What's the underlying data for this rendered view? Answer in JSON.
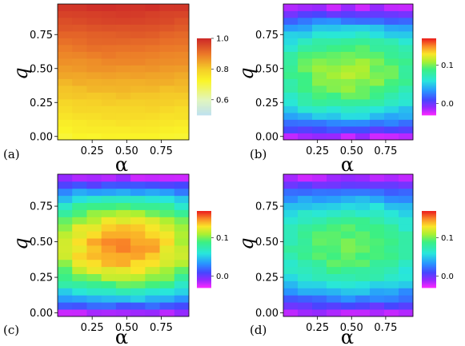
{
  "chart_data": [
    {
      "type": "heatmap",
      "panel_label": "(a)",
      "xlabel": "α",
      "ylabel": "q",
      "x_ticks": [
        "0.25",
        "0.50",
        "0.75"
      ],
      "y_ticks": [
        "0.00",
        "0.25",
        "0.50",
        "0.75"
      ],
      "x_range": [
        0.0,
        0.95
      ],
      "y_range": [
        -0.025,
        0.975
      ],
      "colormap": "sequential-red-orange-yellow-lightblue",
      "colorbar_range": [
        0.5,
        1.0
      ],
      "colorbar_ticks": [
        "0.6",
        "0.8",
        "1.0"
      ],
      "grid_x_centers": [
        0.05,
        0.15,
        0.25,
        0.35,
        0.45,
        0.55,
        0.65,
        0.75,
        0.85
      ],
      "grid_y_centers": [
        0.0,
        0.05,
        0.1,
        0.15,
        0.2,
        0.25,
        0.3,
        0.35,
        0.4,
        0.45,
        0.5,
        0.55,
        0.6,
        0.65,
        0.7,
        0.75,
        0.8,
        0.85,
        0.9,
        0.95
      ],
      "z_description": "values increase from about 0.73 at q=0 to about 0.99 at q=0.95, nearly independent of alpha",
      "z_bottom": 0.73,
      "z_top": 0.99
    },
    {
      "type": "heatmap",
      "panel_label": "(b)",
      "xlabel": "α",
      "ylabel": "q",
      "x_ticks": [
        "0.25",
        "0.50",
        "0.75"
      ],
      "y_ticks": [
        "0.00",
        "0.25",
        "0.50",
        "0.75"
      ],
      "x_range": [
        0.0,
        0.95
      ],
      "y_range": [
        -0.025,
        0.975
      ],
      "colormap": "rainbow-magenta-to-red",
      "colorbar_range": [
        -0.03,
        0.17
      ],
      "colorbar_ticks": [
        "0.0",
        "0.1"
      ],
      "z_description": "dome-shaped: near 0.0 at q=0 and q=0.95, peak about 0.11 around q=0.5, alpha=0.5",
      "z_peak": 0.11,
      "z_edge": 0.0
    },
    {
      "type": "heatmap",
      "panel_label": "(c)",
      "xlabel": "α",
      "ylabel": "q",
      "x_ticks": [
        "0.25",
        "0.50",
        "0.75"
      ],
      "y_ticks": [
        "0.00",
        "0.25",
        "0.50",
        "0.75"
      ],
      "x_range": [
        0.0,
        0.95
      ],
      "y_range": [
        -0.025,
        0.975
      ],
      "colormap": "rainbow-magenta-to-red",
      "colorbar_range": [
        -0.03,
        0.17
      ],
      "colorbar_ticks": [
        "0.0",
        "0.1"
      ],
      "z_description": "dome-shaped: near 0.0 at q=0 and q=0.95, peak about 0.15 around q=0.5, alpha=0.5",
      "z_peak": 0.15,
      "z_edge": 0.0
    },
    {
      "type": "heatmap",
      "panel_label": "(d)",
      "xlabel": "α",
      "ylabel": "q",
      "x_ticks": [
        "0.25",
        "0.50",
        "0.75"
      ],
      "y_ticks": [
        "0.00",
        "0.25",
        "0.50",
        "0.75"
      ],
      "x_range": [
        0.0,
        0.95
      ],
      "y_range": [
        -0.025,
        0.975
      ],
      "colormap": "rainbow-magenta-to-red",
      "colorbar_range": [
        -0.03,
        0.17
      ],
      "colorbar_ticks": [
        "0.0",
        "0.1"
      ],
      "z_description": "dome-shaped: near 0.0 at q=0 and q=0.95, peak about 0.10 around q=0.5, alpha=0.5",
      "z_peak": 0.1,
      "z_edge": 0.0
    }
  ]
}
